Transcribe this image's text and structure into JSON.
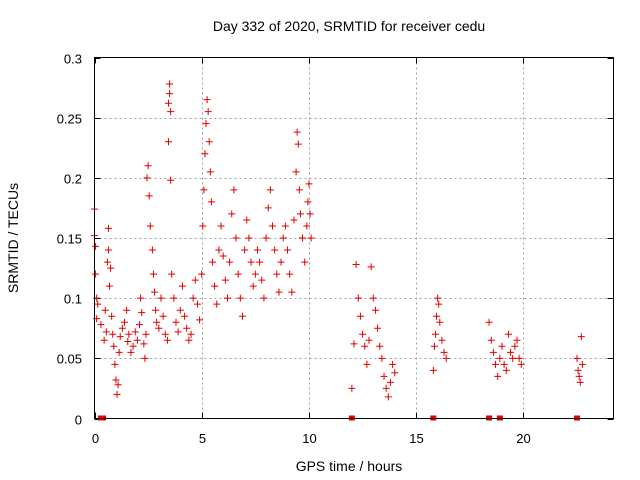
{
  "chart_data": {
    "type": "scatter",
    "title": "Day 332 of 2020, SRMTID for receiver cedu",
    "xlabel": "GPS time / hours",
    "ylabel": "SRMTID / TECUs",
    "xlim": [
      0,
      24.2
    ],
    "ylim": [
      0,
      0.3
    ],
    "grid": true,
    "marker": "+",
    "marker_color": "#e00000",
    "xticks": [
      {
        "value": 0,
        "label": "0"
      },
      {
        "value": 5,
        "label": "5"
      },
      {
        "value": 10,
        "label": "10"
      },
      {
        "value": 15,
        "label": "15"
      },
      {
        "value": 20,
        "label": "20"
      }
    ],
    "yticks": [
      {
        "value": 0,
        "label": "0"
      },
      {
        "value": 0.05,
        "label": "0.05"
      },
      {
        "value": 0.1,
        "label": "0.1"
      },
      {
        "value": 0.15,
        "label": "0.15"
      },
      {
        "value": 0.2,
        "label": "0.2"
      },
      {
        "value": 0.25,
        "label": "0.25"
      },
      {
        "value": 0.3,
        "label": "0.3"
      }
    ],
    "series": [
      {
        "name": "SRMTID",
        "points": [
          [
            0.0,
            0.174
          ],
          [
            0.0,
            0.152
          ],
          [
            0.05,
            0.12
          ],
          [
            0.05,
            0.143
          ],
          [
            0.1,
            0.1
          ],
          [
            0.1,
            0.083
          ],
          [
            0.15,
            0.095
          ],
          [
            0.3,
            0.078
          ],
          [
            0.45,
            0.065
          ],
          [
            0.5,
            0.09
          ],
          [
            0.55,
            0.072
          ],
          [
            0.6,
            0.13
          ],
          [
            0.65,
            0.158
          ],
          [
            0.65,
            0.14
          ],
          [
            0.7,
            0.11
          ],
          [
            0.75,
            0.125
          ],
          [
            0.8,
            0.085
          ],
          [
            0.85,
            0.07
          ],
          [
            0.9,
            0.06
          ],
          [
            0.95,
            0.045
          ],
          [
            1.0,
            0.032
          ],
          [
            1.05,
            0.02
          ],
          [
            1.1,
            0.028
          ],
          [
            1.15,
            0.055
          ],
          [
            1.2,
            0.068
          ],
          [
            1.3,
            0.075
          ],
          [
            1.4,
            0.08
          ],
          [
            1.5,
            0.09
          ],
          [
            1.55,
            0.064
          ],
          [
            1.6,
            0.07
          ],
          [
            1.7,
            0.055
          ],
          [
            1.8,
            0.06
          ],
          [
            1.9,
            0.072
          ],
          [
            2.0,
            0.065
          ],
          [
            2.1,
            0.078
          ],
          [
            2.15,
            0.1
          ],
          [
            2.2,
            0.088
          ],
          [
            2.3,
            0.062
          ],
          [
            2.35,
            0.05
          ],
          [
            2.4,
            0.07
          ],
          [
            2.45,
            0.2
          ],
          [
            2.5,
            0.21
          ],
          [
            2.55,
            0.185
          ],
          [
            2.6,
            0.16
          ],
          [
            2.7,
            0.14
          ],
          [
            2.75,
            0.12
          ],
          [
            2.8,
            0.105
          ],
          [
            2.85,
            0.09
          ],
          [
            2.9,
            0.08
          ],
          [
            3.0,
            0.075
          ],
          [
            3.1,
            0.1
          ],
          [
            3.2,
            0.085
          ],
          [
            3.3,
            0.07
          ],
          [
            3.4,
            0.065
          ],
          [
            3.45,
            0.23
          ],
          [
            3.45,
            0.262
          ],
          [
            3.5,
            0.278
          ],
          [
            3.5,
            0.27
          ],
          [
            3.55,
            0.255
          ],
          [
            3.55,
            0.198
          ],
          [
            3.6,
            0.12
          ],
          [
            3.7,
            0.1
          ],
          [
            3.8,
            0.08
          ],
          [
            3.9,
            0.072
          ],
          [
            4.0,
            0.09
          ],
          [
            4.1,
            0.11
          ],
          [
            4.2,
            0.085
          ],
          [
            4.3,
            0.075
          ],
          [
            4.4,
            0.065
          ],
          [
            4.5,
            0.07
          ],
          [
            4.6,
            0.1
          ],
          [
            4.7,
            0.115
          ],
          [
            4.8,
            0.095
          ],
          [
            4.9,
            0.082
          ],
          [
            5.0,
            0.12
          ],
          [
            5.05,
            0.16
          ],
          [
            5.1,
            0.19
          ],
          [
            5.15,
            0.22
          ],
          [
            5.2,
            0.245
          ],
          [
            5.25,
            0.265
          ],
          [
            5.3,
            0.255
          ],
          [
            5.35,
            0.23
          ],
          [
            5.4,
            0.205
          ],
          [
            5.45,
            0.18
          ],
          [
            5.5,
            0.13
          ],
          [
            5.6,
            0.11
          ],
          [
            5.7,
            0.095
          ],
          [
            5.8,
            0.14
          ],
          [
            5.9,
            0.16
          ],
          [
            6.0,
            0.135
          ],
          [
            6.1,
            0.115
          ],
          [
            6.2,
            0.1
          ],
          [
            6.3,
            0.13
          ],
          [
            6.4,
            0.17
          ],
          [
            6.5,
            0.19
          ],
          [
            6.6,
            0.15
          ],
          [
            6.7,
            0.12
          ],
          [
            6.8,
            0.1
          ],
          [
            6.9,
            0.085
          ],
          [
            7.0,
            0.14
          ],
          [
            7.1,
            0.165
          ],
          [
            7.2,
            0.15
          ],
          [
            7.3,
            0.13
          ],
          [
            7.4,
            0.11
          ],
          [
            7.5,
            0.12
          ],
          [
            7.6,
            0.14
          ],
          [
            7.7,
            0.13
          ],
          [
            7.8,
            0.115
          ],
          [
            7.9,
            0.1
          ],
          [
            8.0,
            0.15
          ],
          [
            8.1,
            0.175
          ],
          [
            8.2,
            0.19
          ],
          [
            8.3,
            0.16
          ],
          [
            8.4,
            0.14
          ],
          [
            8.5,
            0.12
          ],
          [
            8.6,
            0.105
          ],
          [
            8.7,
            0.13
          ],
          [
            8.8,
            0.15
          ],
          [
            8.9,
            0.16
          ],
          [
            9.0,
            0.14
          ],
          [
            9.1,
            0.12
          ],
          [
            9.2,
            0.105
          ],
          [
            9.3,
            0.165
          ],
          [
            9.4,
            0.205
          ],
          [
            9.45,
            0.238
          ],
          [
            9.5,
            0.228
          ],
          [
            9.55,
            0.19
          ],
          [
            9.6,
            0.17
          ],
          [
            9.7,
            0.15
          ],
          [
            9.8,
            0.13
          ],
          [
            9.9,
            0.16
          ],
          [
            9.95,
            0.18
          ],
          [
            10.0,
            0.195
          ],
          [
            10.05,
            0.17
          ],
          [
            10.1,
            0.15
          ],
          [
            12.0,
            0.025
          ],
          [
            12.1,
            0.062
          ],
          [
            12.2,
            0.128
          ],
          [
            12.3,
            0.1
          ],
          [
            12.4,
            0.085
          ],
          [
            12.5,
            0.07
          ],
          [
            12.6,
            0.06
          ],
          [
            12.7,
            0.045
          ],
          [
            12.8,
            0.065
          ],
          [
            12.9,
            0.126
          ],
          [
            13.0,
            0.1
          ],
          [
            13.1,
            0.09
          ],
          [
            13.2,
            0.075
          ],
          [
            13.3,
            0.06
          ],
          [
            13.4,
            0.05
          ],
          [
            13.5,
            0.035
          ],
          [
            13.6,
            0.025
          ],
          [
            13.7,
            0.018
          ],
          [
            13.8,
            0.03
          ],
          [
            13.9,
            0.045
          ],
          [
            14.0,
            0.038
          ],
          [
            15.8,
            0.04
          ],
          [
            15.85,
            0.06
          ],
          [
            15.9,
            0.07
          ],
          [
            15.95,
            0.085
          ],
          [
            16.0,
            0.1
          ],
          [
            16.05,
            0.095
          ],
          [
            16.1,
            0.08
          ],
          [
            16.2,
            0.065
          ],
          [
            16.3,
            0.055
          ],
          [
            16.4,
            0.05
          ],
          [
            18.4,
            0.08
          ],
          [
            18.5,
            0.065
          ],
          [
            18.6,
            0.055
          ],
          [
            18.7,
            0.045
          ],
          [
            18.8,
            0.035
          ],
          [
            18.9,
            0.05
          ],
          [
            19.0,
            0.06
          ],
          [
            19.1,
            0.045
          ],
          [
            19.2,
            0.04
          ],
          [
            19.3,
            0.07
          ],
          [
            19.4,
            0.055
          ],
          [
            19.5,
            0.05
          ],
          [
            19.6,
            0.06
          ],
          [
            19.7,
            0.065
          ],
          [
            19.8,
            0.05
          ],
          [
            19.9,
            0.045
          ],
          [
            22.5,
            0.05
          ],
          [
            22.55,
            0.04
          ],
          [
            22.6,
            0.035
          ],
          [
            22.65,
            0.03
          ],
          [
            22.7,
            0.068
          ],
          [
            22.75,
            0.045
          ]
        ]
      }
    ],
    "zero_markers_x": [
      0.3,
      0.4,
      12.0,
      15.8,
      18.4,
      18.9,
      22.5
    ]
  }
}
